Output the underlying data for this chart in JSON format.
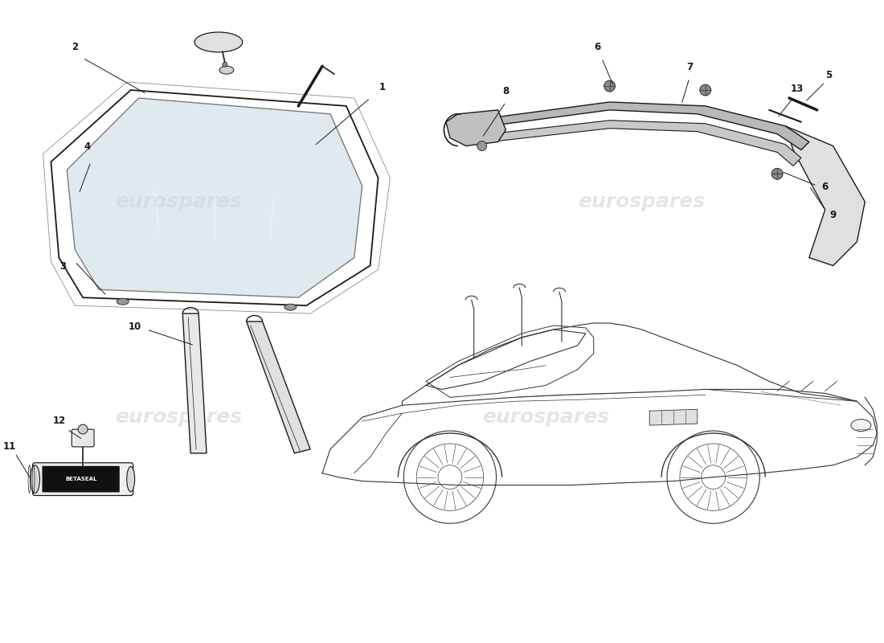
{
  "bg": "#ffffff",
  "lc": "#1a1a1a",
  "wm_color": "#cccccc",
  "wm_alpha": 0.5,
  "wm_text": "eurospares",
  "fw": 11.0,
  "fh": 8.0,
  "lfs": 8.5,
  "glass_fill": "#c5d8e0",
  "glass_alpha": 0.55,
  "seal_fill": "#d0d0d0",
  "trim_fill": "#b8b8b8",
  "car_color": "#333333"
}
